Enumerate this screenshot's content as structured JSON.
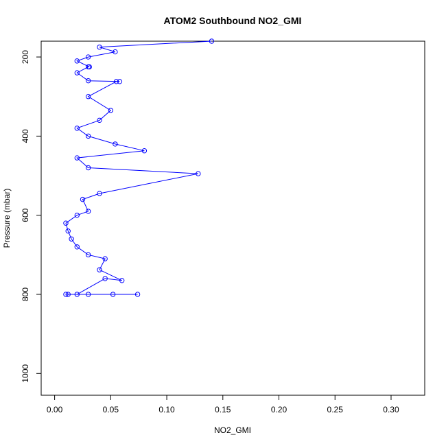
{
  "chart_data": {
    "type": "line",
    "title": "ATOM2 Southbound NO2_GMI",
    "xlabel": "NO2_GMI",
    "ylabel": "Pressure (mbar)",
    "xlim": [
      -0.012,
      0.33
    ],
    "ylim": [
      1055,
      160
    ],
    "y_reversed": true,
    "x_ticks": [
      0.0,
      0.05,
      0.1,
      0.15,
      0.2,
      0.25,
      0.3
    ],
    "x_tick_labels": [
      "0.00",
      "0.05",
      "0.10",
      "0.15",
      "0.20",
      "0.25",
      "0.30"
    ],
    "y_ticks": [
      200,
      400,
      600,
      800,
      1000
    ],
    "y_tick_labels": [
      "200",
      "400",
      "600",
      "800",
      "1000"
    ],
    "grid": false,
    "marker": "open-circle",
    "series": [
      {
        "points": [
          [
            0.074,
            800
          ],
          [
            0.052,
            800
          ],
          [
            0.03,
            800
          ],
          [
            0.012,
            800
          ],
          [
            0.01,
            800
          ],
          [
            0.02,
            800
          ],
          [
            0.045,
            760
          ],
          [
            0.06,
            765
          ],
          [
            0.04,
            738
          ],
          [
            0.045,
            710
          ],
          [
            0.03,
            700
          ],
          [
            0.02,
            680
          ],
          [
            0.015,
            660
          ],
          [
            0.012,
            640
          ],
          [
            0.01,
            620
          ],
          [
            0.02,
            600
          ],
          [
            0.03,
            590
          ],
          [
            0.025,
            560
          ],
          [
            0.04,
            545
          ],
          [
            0.128,
            495
          ],
          [
            0.03,
            480
          ],
          [
            0.02,
            455
          ],
          [
            0.08,
            437
          ],
          [
            0.054,
            420
          ],
          [
            0.03,
            400
          ],
          [
            0.02,
            380
          ],
          [
            0.04,
            360
          ],
          [
            0.05,
            335
          ],
          [
            0.03,
            300
          ],
          [
            0.055,
            262
          ],
          [
            0.058,
            262
          ],
          [
            0.03,
            260
          ],
          [
            0.02,
            240
          ],
          [
            0.03,
            225
          ],
          [
            0.031,
            225
          ],
          [
            0.02,
            210
          ],
          [
            0.03,
            200
          ],
          [
            0.054,
            187
          ],
          [
            0.04,
            175
          ],
          [
            0.14,
            160
          ]
        ]
      }
    ]
  }
}
